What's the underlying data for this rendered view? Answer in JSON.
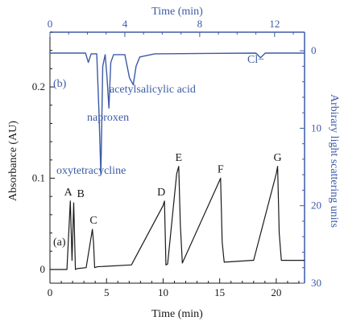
{
  "colors": {
    "trace_a": "#1a1a1a",
    "trace_b": "#3c5aa6",
    "frame": "#1a1a1a"
  },
  "chart_data": [
    {
      "type": "line",
      "panel_label": "(a)",
      "xlabel": "Time (min)",
      "ylabel": "Absorbance (AU)",
      "xlim": [
        0,
        22.5
      ],
      "ylim": [
        -0.015,
        0.26
      ],
      "x_ticks": [
        "0",
        "5",
        "10",
        "15",
        "20"
      ],
      "y_ticks": [
        "0",
        "0.1",
        "0.2"
      ],
      "x": [
        0,
        1.5,
        1.8,
        1.95,
        2.1,
        2.25,
        2.4,
        3.2,
        3.75,
        3.85,
        3.95,
        4.2,
        7.2,
        10.0,
        10.12,
        10.25,
        10.4,
        11.2,
        11.38,
        11.52,
        11.7,
        14.9,
        15.08,
        15.22,
        15.4,
        17.9,
        18.0,
        20.0,
        20.12,
        20.26,
        20.45,
        22.5
      ],
      "y": [
        0,
        0,
        0.075,
        0.01,
        0.073,
        0.0,
        0.001,
        0.002,
        0.044,
        0.03,
        0.002,
        0.003,
        0.005,
        0.07,
        0.075,
        0.005,
        0.006,
        0.105,
        0.113,
        0.05,
        0.007,
        0.095,
        0.1,
        0.03,
        0.008,
        0.01,
        0.01,
        0.105,
        0.113,
        0.04,
        0.01,
        0.01
      ],
      "peak_labels": [
        {
          "label": "A",
          "x": 1.9,
          "y": 0.075
        },
        {
          "label": "B",
          "x": 2.15,
          "y": 0.073
        },
        {
          "label": "C",
          "x": 3.85,
          "y": 0.044
        },
        {
          "label": "D",
          "x": 10.12,
          "y": 0.075
        },
        {
          "label": "E",
          "x": 11.38,
          "y": 0.113
        },
        {
          "label": "F",
          "x": 15.08,
          "y": 0.1
        },
        {
          "label": "G",
          "x": 20.12,
          "y": 0.113
        }
      ]
    },
    {
      "type": "line",
      "panel_label": "(b)",
      "xlabel": "Time (min)",
      "ylabel": "Arbirary light scattering units",
      "xlim": [
        0,
        13.6
      ],
      "ylim": [
        30,
        -2.4
      ],
      "x_ticks": [
        "0",
        "4",
        "8",
        "12"
      ],
      "y_ticks": [
        "0",
        "10",
        "20",
        "30"
      ],
      "x": [
        0,
        1.9,
        2.05,
        2.2,
        2.5,
        2.62,
        2.72,
        2.82,
        2.95,
        3.05,
        3.15,
        3.25,
        3.4,
        4.0,
        4.25,
        4.45,
        4.6,
        4.8,
        5.6,
        11.0,
        11.25,
        11.5,
        13.6
      ],
      "y": [
        0.3,
        0.3,
        1.5,
        0.4,
        0.4,
        8,
        16.0,
        2.0,
        0.5,
        3.5,
        7.4,
        1.5,
        0.5,
        0.5,
        3.5,
        4.4,
        2.0,
        0.8,
        0.4,
        0.3,
        0.9,
        0.3,
        0.3
      ],
      "annotations": [
        {
          "text": "oxytetracycline"
        },
        {
          "text": "naproxen"
        },
        {
          "text": "acetylsalicylic acid"
        },
        {
          "text": "Cl−"
        }
      ]
    }
  ]
}
